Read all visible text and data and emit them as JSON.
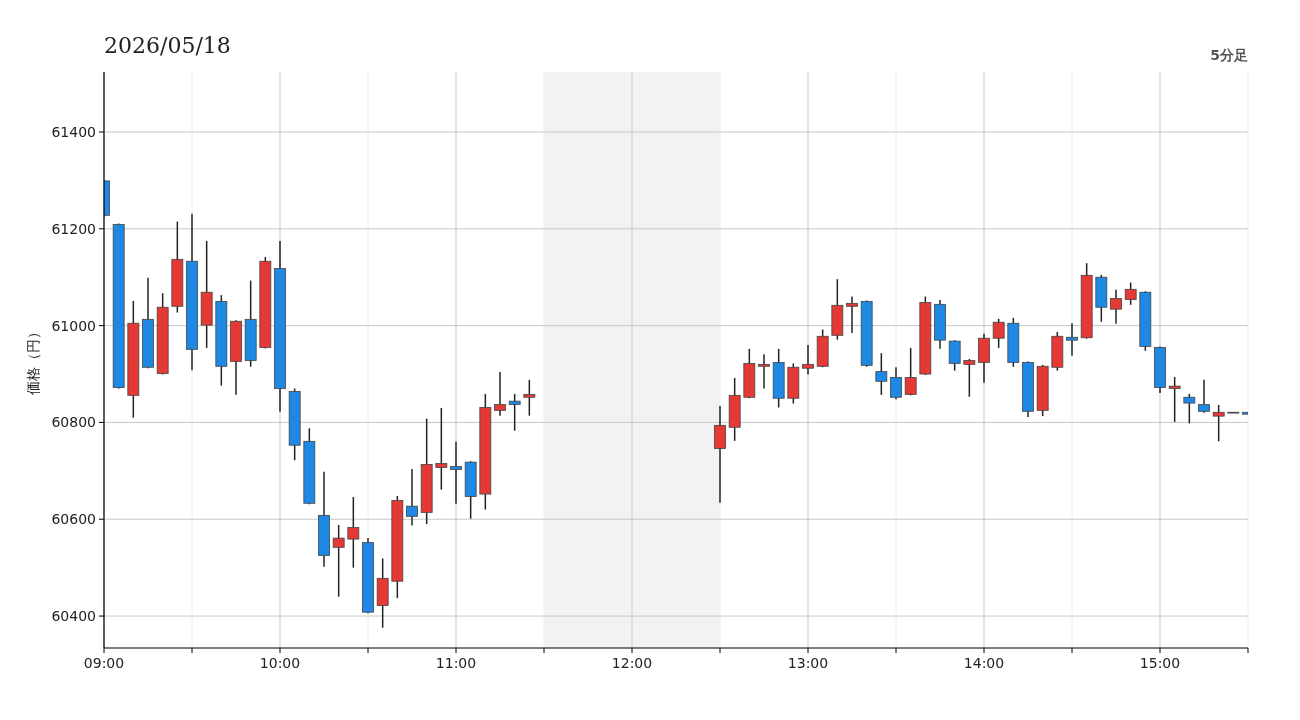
{
  "chart_data": {
    "type": "candlestick",
    "title": "2026/05/18",
    "ylabel": "価格（円）",
    "annotations": [
      "5分足"
    ],
    "x": [
      "2026-05-18T09:00",
      "2026-05-18T09:05",
      "2026-05-18T09:10",
      "2026-05-18T09:15",
      "2026-05-18T09:20",
      "2026-05-18T09:25",
      "2026-05-18T09:30",
      "2026-05-18T09:35",
      "2026-05-18T09:40",
      "2026-05-18T09:45",
      "2026-05-18T09:50",
      "2026-05-18T09:55",
      "2026-05-18T10:00",
      "2026-05-18T10:05",
      "2026-05-18T10:10",
      "2026-05-18T10:15",
      "2026-05-18T10:20",
      "2026-05-18T10:25",
      "2026-05-18T10:30",
      "2026-05-18T10:35",
      "2026-05-18T10:40",
      "2026-05-18T10:45",
      "2026-05-18T10:50",
      "2026-05-18T10:55",
      "2026-05-18T11:00",
      "2026-05-18T11:05",
      "2026-05-18T11:10",
      "2026-05-18T11:15",
      "2026-05-18T11:20",
      "2026-05-18T11:25",
      "2026-05-18T12:30",
      "2026-05-18T12:35",
      "2026-05-18T12:40",
      "2026-05-18T12:45",
      "2026-05-18T12:50",
      "2026-05-18T12:55",
      "2026-05-18T13:00",
      "2026-05-18T13:05",
      "2026-05-18T13:10",
      "2026-05-18T13:15",
      "2026-05-18T13:20",
      "2026-05-18T13:25",
      "2026-05-18T13:30",
      "2026-05-18T13:35",
      "2026-05-18T13:40",
      "2026-05-18T13:45",
      "2026-05-18T13:50",
      "2026-05-18T13:55",
      "2026-05-18T14:00",
      "2026-05-18T14:05",
      "2026-05-18T14:10",
      "2026-05-18T14:15",
      "2026-05-18T14:20",
      "2026-05-18T14:25",
      "2026-05-18T14:30",
      "2026-05-18T14:35",
      "2026-05-18T14:40",
      "2026-05-18T14:45",
      "2026-05-18T14:50",
      "2026-05-18T14:55",
      "2026-05-18T15:00",
      "2026-05-18T15:05",
      "2026-05-18T15:10",
      "2026-05-18T15:15",
      "2026-05-18T15:20",
      "2026-05-18T15:25",
      "2026-05-18T15:30"
    ],
    "ohlc": [
      [
        61299,
        61299,
        61225,
        61228
      ],
      [
        61209,
        61211,
        60870,
        60872
      ],
      [
        60856,
        61051,
        60810,
        61005
      ],
      [
        61013,
        61099,
        60912,
        60914
      ],
      [
        60901,
        61067,
        60899,
        61038
      ],
      [
        61040,
        61215,
        61027,
        61137
      ],
      [
        61133,
        61231,
        60908,
        60951
      ],
      [
        61001,
        61175,
        60954,
        61069
      ],
      [
        61050,
        61063,
        60876,
        60916
      ],
      [
        60926,
        61011,
        60857,
        61009
      ],
      [
        61013,
        61093,
        60915,
        60928
      ],
      [
        60955,
        61142,
        60953,
        61133
      ],
      [
        61118,
        61175,
        60822,
        60870
      ],
      [
        60864,
        60870,
        60722,
        60753
      ],
      [
        60761,
        60788,
        60631,
        60633
      ],
      [
        60608,
        60698,
        60502,
        60525
      ],
      [
        60542,
        60588,
        60440,
        60561
      ],
      [
        60559,
        60646,
        60500,
        60583
      ],
      [
        60552,
        60561,
        60406,
        60408
      ],
      [
        60422,
        60519,
        60376,
        60478
      ],
      [
        60472,
        60648,
        60437,
        60639
      ],
      [
        60627,
        60704,
        60587,
        60606
      ],
      [
        60614,
        60808,
        60590,
        60713
      ],
      [
        60707,
        60830,
        60661,
        60715
      ],
      [
        60709,
        60760,
        60632,
        60703
      ],
      [
        60718,
        60720,
        60601,
        60647
      ],
      [
        60652,
        60859,
        60620,
        60831
      ],
      [
        60825,
        60904,
        60814,
        60837
      ],
      [
        60844,
        60859,
        60783,
        60837
      ],
      [
        60852,
        60888,
        60814,
        60858
      ],
      [
        60746,
        60834,
        60634,
        60794
      ],
      [
        60790,
        60892,
        60762,
        60856
      ],
      [
        60852,
        60952,
        60850,
        60922
      ],
      [
        60916,
        60941,
        60870,
        60920
      ],
      [
        60924,
        60952,
        60831,
        60850
      ],
      [
        60850,
        60922,
        60839,
        60914
      ],
      [
        60912,
        60960,
        60899,
        60920
      ],
      [
        60916,
        60992,
        60914,
        60978
      ],
      [
        60980,
        61096,
        60971,
        61042
      ],
      [
        61040,
        61060,
        60985,
        61046
      ],
      [
        61050,
        61052,
        60915,
        60918
      ],
      [
        60905,
        60943,
        60857,
        60885
      ],
      [
        60893,
        60914,
        60848,
        60852
      ],
      [
        60858,
        60954,
        60856,
        60893
      ],
      [
        60900,
        61060,
        60898,
        61048
      ],
      [
        61044,
        61053,
        60952,
        60970
      ],
      [
        60968,
        60970,
        60907,
        60922
      ],
      [
        60920,
        60931,
        60853,
        60928
      ],
      [
        60924,
        60983,
        60882,
        60974
      ],
      [
        60974,
        61014,
        60954,
        61007
      ],
      [
        61005,
        61016,
        60915,
        60924
      ],
      [
        60924,
        60926,
        60811,
        60823
      ],
      [
        60825,
        60919,
        60813,
        60916
      ],
      [
        60914,
        60987,
        60907,
        60978
      ],
      [
        60976,
        61005,
        60938,
        60970
      ],
      [
        60975,
        61129,
        60973,
        61104
      ],
      [
        61100,
        61105,
        61008,
        61038
      ],
      [
        61034,
        61074,
        61004,
        61056
      ],
      [
        61054,
        61089,
        61043,
        61075
      ],
      [
        61069,
        61071,
        60948,
        60957
      ],
      [
        60955,
        60957,
        60861,
        60872
      ],
      [
        60870,
        60894,
        60801,
        60875
      ],
      [
        60852,
        60859,
        60798,
        60840
      ],
      [
        60837,
        60888,
        60820,
        60823
      ],
      [
        60813,
        60836,
        60761,
        60821
      ],
      [
        60821,
        60821,
        60821,
        60821
      ],
      [
        60821,
        60821,
        60817,
        60817
      ]
    ],
    "colors": [
      "#1e88e5",
      "#1e88e5",
      "#e53935",
      "#1e88e5",
      "#e53935",
      "#e53935",
      "#1e88e5",
      "#e53935",
      "#1e88e5",
      "#e53935",
      "#1e88e5",
      "#e53935",
      "#1e88e5",
      "#1e88e5",
      "#1e88e5",
      "#1e88e5",
      "#e53935",
      "#e53935",
      "#1e88e5",
      "#e53935",
      "#e53935",
      "#1e88e5",
      "#e53935",
      "#e53935",
      "#1e88e5",
      "#1e88e5",
      "#e53935",
      "#e53935",
      "#1e88e5",
      "#e53935",
      "#e53935",
      "#e53935",
      "#e53935",
      "#e53935",
      "#1e88e5",
      "#e53935",
      "#e53935",
      "#e53935",
      "#e53935",
      "#e53935",
      "#1e88e5",
      "#1e88e5",
      "#1e88e5",
      "#e53935",
      "#e53935",
      "#1e88e5",
      "#1e88e5",
      "#e53935",
      "#e53935",
      "#e53935",
      "#1e88e5",
      "#1e88e5",
      "#e53935",
      "#e53935",
      "#1e88e5",
      "#e53935",
      "#1e88e5",
      "#e53935",
      "#e53935",
      "#1e88e5",
      "#1e88e5",
      "#e53935",
      "#1e88e5",
      "#1e88e5",
      "#e53935",
      "#666666",
      "#1e88e5"
    ],
    "xlim": [
      "2026-05-18T09:00",
      "2026-05-18T15:30"
    ],
    "xticks": [
      {
        "value": "2026-05-18T09:00",
        "label": "09:00"
      },
      {
        "value": "2026-05-18T09:30",
        "label": null
      },
      {
        "value": "2026-05-18T10:00",
        "label": "10:00"
      },
      {
        "value": "2026-05-18T10:30",
        "label": null
      },
      {
        "value": "2026-05-18T11:00",
        "label": "11:00"
      },
      {
        "value": "2026-05-18T11:30",
        "label": null
      },
      {
        "value": "2026-05-18T12:00",
        "label": "12:00"
      },
      {
        "value": "2026-05-18T12:30",
        "label": null
      },
      {
        "value": "2026-05-18T13:00",
        "label": "13:00"
      },
      {
        "value": "2026-05-18T13:30",
        "label": null
      },
      {
        "value": "2026-05-18T14:00",
        "label": "14:00"
      },
      {
        "value": "2026-05-18T14:30",
        "label": null
      },
      {
        "value": "2026-05-18T15:00",
        "label": "15:00"
      },
      {
        "value": "2026-05-18T15:30",
        "label": null
      }
    ],
    "ylim": [
      60334,
      61524
    ],
    "yticks": [
      60400,
      60600,
      60800,
      61000,
      61200,
      61400
    ],
    "grid": true,
    "bands": [
      {
        "axis": "x",
        "from": "2026-05-18T11:30",
        "to": "2026-05-18T12:30",
        "color": "#f2f2f2"
      }
    ]
  }
}
